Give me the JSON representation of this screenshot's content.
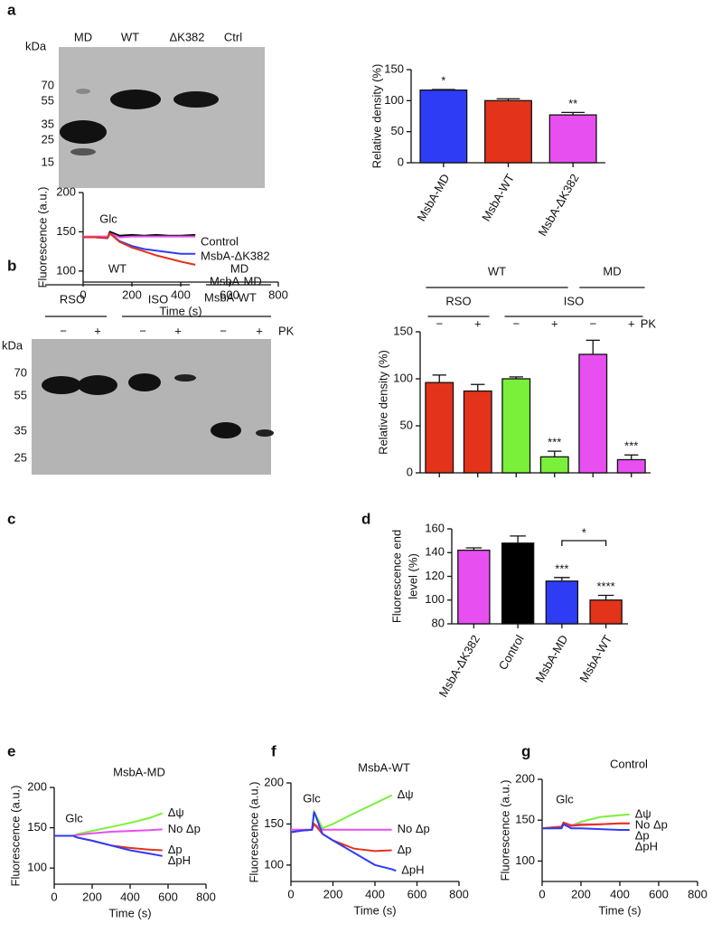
{
  "gels": [
    {
      "panel": "a",
      "unit": "kDa",
      "markers": [
        70,
        55,
        35,
        25,
        15
      ],
      "lanes": [
        "MD",
        "WT",
        "ΔK382",
        "Ctrl"
      ]
    },
    {
      "panel": "b",
      "groups": [
        "WT",
        "MD"
      ],
      "subgroups": [
        "RSO",
        "ISO"
      ],
      "lanes": [
        "−",
        "+",
        "−",
        "+",
        "−",
        "+"
      ],
      "condition": "PK",
      "unit": "kDa",
      "markers": [
        70,
        55,
        35,
        25
      ]
    }
  ],
  "chart_data": [
    {
      "type": "bar",
      "ylabel": "Relative density (%)",
      "categories": [
        "MsbA-MD",
        "MsbA-WT",
        "MsbA-ΔK382"
      ],
      "values": [
        117,
        100,
        77
      ],
      "errors": [
        1,
        3,
        4
      ],
      "colors": [
        "#2f3cf5",
        "#e3331a",
        "#e84ff0"
      ],
      "annotations": [
        "*",
        null,
        "**"
      ],
      "ylim": [
        0,
        150
      ],
      "yticks": [
        0,
        50,
        100,
        150
      ]
    },
    {
      "type": "bar",
      "ylabel": "Relative density (%)",
      "groups": [
        "WT",
        "MD"
      ],
      "subgroups": [
        "RSO",
        "ISO"
      ],
      "condition": "PK",
      "categories": [
        "−",
        "+",
        "−",
        "+",
        "−",
        "+"
      ],
      "values": [
        96,
        87,
        100,
        17,
        126,
        14
      ],
      "errors": [
        8,
        7,
        2,
        6,
        15,
        5
      ],
      "colors": [
        "#e3331a",
        "#e3331a",
        "#7bf03a",
        "#7bf03a",
        "#e84ff0",
        "#e84ff0"
      ],
      "annotations": [
        null,
        null,
        null,
        "***",
        null,
        "***"
      ],
      "ylim": [
        0,
        150
      ],
      "yticks": [
        0,
        50,
        100,
        150
      ]
    },
    {
      "type": "line",
      "panel": "c",
      "xlabel": "Time (s)",
      "ylabel": "Fluorescence (a.u.)",
      "annotation": "Glc",
      "x": [
        0,
        50,
        100,
        110,
        150,
        200,
        250,
        300,
        350,
        400,
        460
      ],
      "series": [
        {
          "name": "Control",
          "color": "#000000",
          "values": [
            143,
            143,
            143,
            150,
            145,
            146,
            145,
            146,
            145,
            145,
            146
          ]
        },
        {
          "name": "MsbA-ΔK382",
          "color": "#e84ff0",
          "values": [
            144,
            144,
            144,
            148,
            143,
            144,
            144,
            144,
            144,
            144,
            144
          ]
        },
        {
          "name": "MsbA-MD",
          "color": "#2f3cf5",
          "values": [
            143,
            143,
            142,
            148,
            138,
            132,
            128,
            126,
            124,
            122,
            122
          ]
        },
        {
          "name": "MsbA-WT",
          "color": "#e3331a",
          "values": [
            143,
            143,
            142,
            148,
            137,
            130,
            125,
            120,
            116,
            112,
            108
          ]
        }
      ],
      "xlim": [
        0,
        800
      ],
      "xticks": [
        0,
        200,
        400,
        600,
        800
      ],
      "ylim": [
        86,
        200
      ],
      "yticks": [
        100,
        150,
        200
      ]
    },
    {
      "type": "bar",
      "panel": "d",
      "ylabel": [
        "Fluorescence end",
        "level (%)"
      ],
      "categories": [
        "MsbA-ΔK382",
        "Control",
        "MsbA-MD",
        "MsbA-WT"
      ],
      "values": [
        142,
        148,
        116,
        100
      ],
      "errors": [
        2,
        6,
        3,
        4
      ],
      "colors": [
        "#e84ff0",
        "#000000",
        "#2f3cf5",
        "#e3331a"
      ],
      "annotations": [
        null,
        null,
        "***",
        "****"
      ],
      "bracket_label": "*",
      "ylim": [
        80,
        160
      ],
      "yticks": [
        80,
        100,
        120,
        140,
        160
      ]
    },
    {
      "type": "line",
      "panel": "e",
      "title": "MsbA-MD",
      "xlabel": "Time (s)",
      "ylabel": "Fluorescence (a.u.)",
      "annotation": "Glc",
      "x": [
        0,
        50,
        100,
        120,
        200,
        300,
        400,
        500,
        570
      ],
      "series": [
        {
          "name": "Δψ",
          "color": "#7bf03a",
          "values": [
            140,
            140,
            140,
            142,
            146,
            151,
            156,
            162,
            168
          ]
        },
        {
          "name": "No Δp",
          "color": "#e84ff0",
          "values": [
            140,
            140,
            140,
            141,
            143,
            145,
            146,
            147,
            148
          ]
        },
        {
          "name": "Δp",
          "color": "#e3331a",
          "values": [
            140,
            140,
            140,
            138,
            134,
            128,
            125,
            123,
            122
          ]
        },
        {
          "name": "ΔpH",
          "color": "#2f3cf5",
          "values": [
            140,
            140,
            140,
            138,
            134,
            128,
            122,
            118,
            115
          ]
        }
      ],
      "xlim": [
        0,
        800
      ],
      "xticks": [
        0,
        200,
        400,
        600,
        800
      ],
      "ylim": [
        80,
        200
      ],
      "yticks": [
        100,
        150,
        200
      ]
    },
    {
      "type": "line",
      "panel": "f",
      "title": "MsbA-WT",
      "xlabel": "Time (s)",
      "ylabel": "Fluorescence (a.u.)",
      "annotation": "Glc",
      "x": [
        0,
        50,
        100,
        110,
        150,
        200,
        300,
        400,
        480,
        500
      ],
      "series": [
        {
          "name": "Δψ",
          "color": "#7bf03a",
          "values": [
            140,
            142,
            143,
            165,
            145,
            150,
            163,
            175,
            185,
            null
          ]
        },
        {
          "name": "No Δp",
          "color": "#e84ff0",
          "values": [
            143,
            143,
            143,
            150,
            143,
            143,
            143,
            143,
            143,
            null
          ]
        },
        {
          "name": "Δp",
          "color": "#e3331a",
          "values": [
            140,
            142,
            143,
            150,
            138,
            130,
            120,
            117,
            118,
            null
          ]
        },
        {
          "name": "ΔpH",
          "color": "#2f3cf5",
          "values": [
            140,
            142,
            143,
            165,
            138,
            130,
            115,
            100,
            95,
            93
          ]
        }
      ],
      "xlim": [
        0,
        800
      ],
      "xticks": [
        0,
        200,
        400,
        600,
        800
      ],
      "ylim": [
        80,
        200
      ],
      "yticks": [
        100,
        150,
        200
      ]
    },
    {
      "type": "line",
      "panel": "g",
      "title": "Control",
      "xlabel": "Time (s)",
      "ylabel": "Fluorescence (a.u.)",
      "annotation": "Glc",
      "x": [
        0,
        50,
        100,
        110,
        150,
        200,
        300,
        400,
        450
      ],
      "series": [
        {
          "name": "Δψ",
          "color": "#7bf03a",
          "values": [
            140,
            140,
            141,
            146,
            143,
            148,
            154,
            156,
            157
          ]
        },
        {
          "name": "No Δp",
          "color": "#e84ff0",
          "values": [
            140,
            141,
            142,
            147,
            144,
            145,
            145,
            146,
            146
          ]
        },
        {
          "name": "Δp",
          "color": "#e3331a",
          "values": [
            140,
            141,
            142,
            147,
            143,
            144,
            145,
            146,
            146
          ]
        },
        {
          "name": "ΔpH",
          "color": "#2f3cf5",
          "values": [
            140,
            140,
            140,
            145,
            140,
            140,
            139,
            138,
            138
          ]
        }
      ],
      "xlim": [
        0,
        800
      ],
      "xticks": [
        0,
        200,
        400,
        600,
        800
      ],
      "ylim": [
        75,
        200
      ],
      "yticks": [
        100,
        150,
        200
      ]
    }
  ]
}
